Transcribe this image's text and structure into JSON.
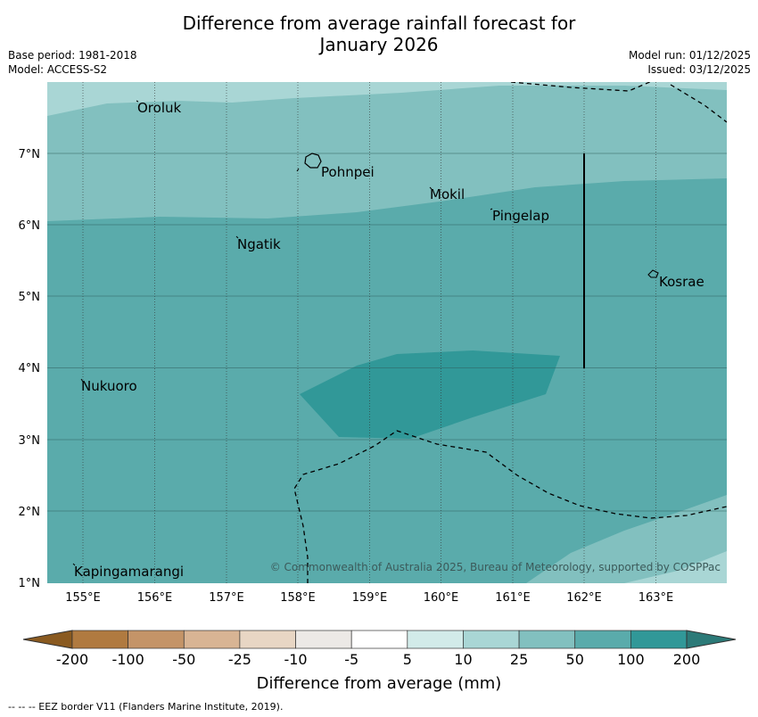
{
  "title_line1": "Difference from average rainfall forecast for",
  "title_line2": "January 2026",
  "meta_left": {
    "base_period": "Base period: 1981-2018",
    "model": "Model: ACCESS-S2"
  },
  "meta_right": {
    "model_run": "Model run: 01/12/2025",
    "issued": "Issued: 03/12/2025"
  },
  "lat_labels": [
    "7°N",
    "6°N",
    "5°N",
    "4°N",
    "3°N",
    "2°N",
    "1°N"
  ],
  "lon_labels": [
    "155°E",
    "156°E",
    "157°E",
    "158°E",
    "159°E",
    "160°E",
    "161°E",
    "162°E",
    "163°E"
  ],
  "places": [
    "Oroluk",
    "Pohnpei",
    "Mokil",
    "Pingelap",
    "Ngatik",
    "Kosrae",
    "Nukuoro",
    "Kapingamarangi"
  ],
  "copyright": "© Commonwealth of Australia 2025, Bureau of Meteorology, supported by COSPPac",
  "colorbar": {
    "ticks": [
      "-200",
      "-100",
      "-50",
      "-25",
      "-10",
      "-5",
      "5",
      "10",
      "25",
      "50",
      "100",
      "200"
    ],
    "colors": [
      "#8a5a20",
      "#b07a40",
      "#c49468",
      "#d8b494",
      "#e8d6c4",
      "#ece9e6",
      "#ffffff",
      "#d2ebe9",
      "#a9d6d5",
      "#82c0bf",
      "#5aabab",
      "#319898",
      "#2c7a78"
    ],
    "label": "Difference from average (mm)"
  },
  "footnote": "--  --  -- EEZ border V11 (Flanders Marine Institute, 2019)."
}
